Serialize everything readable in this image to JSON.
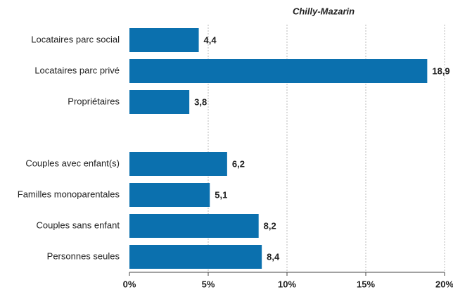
{
  "chart_data": {
    "type": "bar",
    "orientation": "horizontal",
    "title": "Chilly-Mazarin",
    "categories": [
      "Locataires parc social",
      "Locataires parc privé",
      "Propriétaires",
      null,
      "Couples avec enfant(s)",
      "Familles monoparentales",
      "Couples sans enfant",
      "Personnes seules"
    ],
    "values": [
      4.4,
      18.9,
      3.8,
      null,
      6.2,
      5.1,
      8.2,
      8.4
    ],
    "value_labels": [
      "4,4",
      "18,9",
      "3,8",
      null,
      "6,2",
      "5,1",
      "8,2",
      "8,4"
    ],
    "color": "#0b70ae",
    "label_color": "#1a7fc1",
    "xlim": [
      0,
      20
    ],
    "xticks": [
      {
        "value": 0,
        "label": "0%"
      },
      {
        "value": 5,
        "label": "5%"
      },
      {
        "value": 10,
        "label": "10%"
      },
      {
        "value": 15,
        "label": "15%"
      },
      {
        "value": 20,
        "label": "20%"
      }
    ],
    "grid": true
  }
}
